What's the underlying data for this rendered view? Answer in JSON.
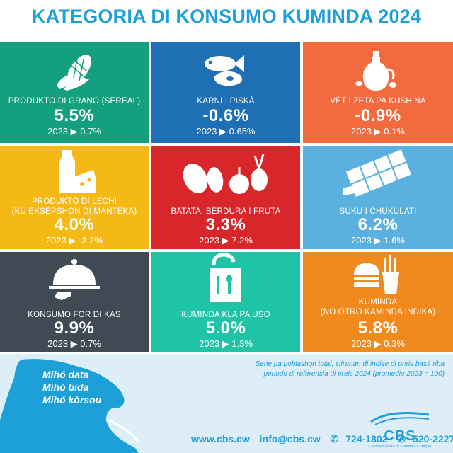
{
  "title": "KATEGORIA DI KONSUMO KUMINDA 2024",
  "colors": {
    "accent": "#1d9fd8",
    "tiles": [
      "#14a07e",
      "#1f6fb5",
      "#f26a3e",
      "#f5b915",
      "#d9262a",
      "#5ab1e0",
      "#3f4a55",
      "#1fc4a7",
      "#f08a1c"
    ]
  },
  "tiles": [
    {
      "label": "PRODUKTO DI GRANO (SEREAL)",
      "value": "5.5%",
      "prev": "2023 ▶ 0.7%",
      "icon": "corn-icon"
    },
    {
      "label": "KARNI I PISKÁ",
      "value": "-0.6%",
      "prev": "2023 ▶ 0.65%",
      "icon": "fish-meat-icon"
    },
    {
      "label": "VÈT I ZETA PA KUSHINÁ",
      "value": "-0.9%",
      "prev": "2023 ▶ 0.1%",
      "icon": "oil-bottle-icon"
    },
    {
      "label": "PRODUKTO DI LECHI\n(KU EKSEPSHON DI MANTEKA)",
      "value": "4.0%",
      "prev": "2023 ▶ -3.2%",
      "icon": "milk-cheese-icon"
    },
    {
      "label": "BATATA, BÈRDURA I FRUTA",
      "value": "3.3%",
      "prev": "2023 ▶ 7.2%",
      "icon": "vegetables-icon"
    },
    {
      "label": "SUKU I CHUKULATI",
      "value": "6.2%",
      "prev": "2023 ▶ 1.6%",
      "icon": "chocolate-icon"
    },
    {
      "label": "KONSUMO FOR DI KAS",
      "value": "9.9%",
      "prev": "2023 ▶ 0.7%",
      "icon": "cloche-icon"
    },
    {
      "label": "KUMINDA KLA PA USO",
      "value": "5.0%",
      "prev": "2023 ▶ 1.3%",
      "icon": "takeaway-bag-icon"
    },
    {
      "label": "KUMINDA\n(NO OTRO KAMINDA INDIKA)",
      "value": "5.8%",
      "prev": "2023 ▶ 0.3%",
      "icon": "fastfood-icon"
    }
  ],
  "footer": {
    "slogan": [
      "Mihó data",
      "Mihó bida",
      "Mihó kòrsou"
    ],
    "note_line1": "Serie pa poblashon total, sifranan di indise di preis basá riba",
    "note_line2": "periodo di referensia di preis 2024 (promedio 2023 = 100)",
    "website": "www.cbs.cw",
    "email": "info@cbs.cw",
    "phone": "724-1802",
    "whatsapp": "520-2227",
    "logo_text": "CBS",
    "logo_sub": "Central Bureau of Statistics Curaçao"
  }
}
